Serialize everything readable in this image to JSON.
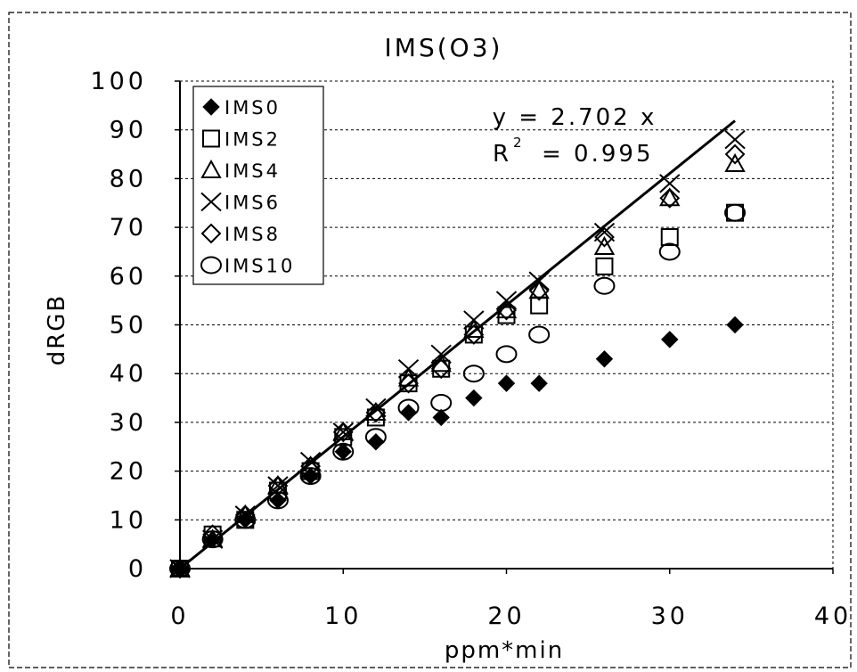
{
  "chart_data": {
    "type": "scatter",
    "title": "IMS(O3)",
    "xlabel": "ppm*min",
    "ylabel": "dRGB",
    "xlim": [
      0,
      40
    ],
    "ylim": [
      0,
      100
    ],
    "xticks": [
      "0",
      "10",
      "20",
      "30",
      "40"
    ],
    "yticks": [
      "0",
      "10",
      "20",
      "30",
      "40",
      "50",
      "60",
      "70",
      "80",
      "90",
      "100"
    ],
    "grid": "horizontal dashed",
    "legend_position": "top-left",
    "series": [
      {
        "name": "IMS0",
        "marker": "filled-diamond",
        "x": [
          0,
          2,
          4,
          6,
          8,
          10,
          12,
          14,
          16,
          18,
          20,
          22,
          26,
          30,
          34
        ],
        "y": [
          0,
          6,
          10,
          14,
          19,
          24,
          26,
          32,
          31,
          35,
          38,
          38,
          43,
          47,
          50
        ]
      },
      {
        "name": "IMS2",
        "marker": "square",
        "x": [
          0,
          2,
          4,
          6,
          8,
          10,
          12,
          14,
          16,
          18,
          20,
          22,
          26,
          30,
          34
        ],
        "y": [
          0,
          7,
          10,
          16,
          20,
          27,
          31,
          38,
          41,
          48,
          52,
          54,
          62,
          68,
          73
        ]
      },
      {
        "name": "IMS4",
        "marker": "triangle",
        "x": [
          0,
          2,
          4,
          6,
          8,
          10,
          12,
          14,
          16,
          18,
          20,
          22,
          26,
          30,
          34
        ],
        "y": [
          0,
          6,
          11,
          17,
          21,
          28,
          32,
          39,
          42,
          49,
          53,
          57,
          66,
          76,
          83
        ]
      },
      {
        "name": "IMS6",
        "marker": "x",
        "x": [
          0,
          2,
          4,
          6,
          8,
          10,
          12,
          14,
          16,
          18,
          20,
          22,
          26,
          30,
          34
        ],
        "y": [
          0,
          6,
          11,
          17,
          22,
          28,
          33,
          41,
          44,
          51,
          55,
          59,
          69,
          79,
          88
        ]
      },
      {
        "name": "IMS8",
        "marker": "diamond",
        "x": [
          0,
          2,
          4,
          6,
          8,
          10,
          12,
          14,
          16,
          18,
          20,
          22,
          26,
          30,
          34
        ],
        "y": [
          0,
          7,
          11,
          17,
          21,
          28,
          32,
          38,
          41,
          48,
          53,
          57,
          68,
          76,
          85
        ]
      },
      {
        "name": "IMS10",
        "marker": "circle",
        "x": [
          0,
          2,
          4,
          6,
          8,
          10,
          12,
          14,
          16,
          18,
          20,
          22,
          26,
          30,
          34
        ],
        "y": [
          0,
          6,
          10,
          14,
          19,
          24,
          27,
          33,
          34,
          40,
          44,
          48,
          58,
          65,
          73
        ]
      }
    ],
    "trendline": {
      "type": "linear-through-origin",
      "slope": 2.702,
      "x_range": [
        0,
        34
      ]
    },
    "annotation": {
      "equation": "y = 2.702 x",
      "r2_label": "R",
      "r2_sup": "2",
      "r2_value": "= 0.995"
    }
  }
}
